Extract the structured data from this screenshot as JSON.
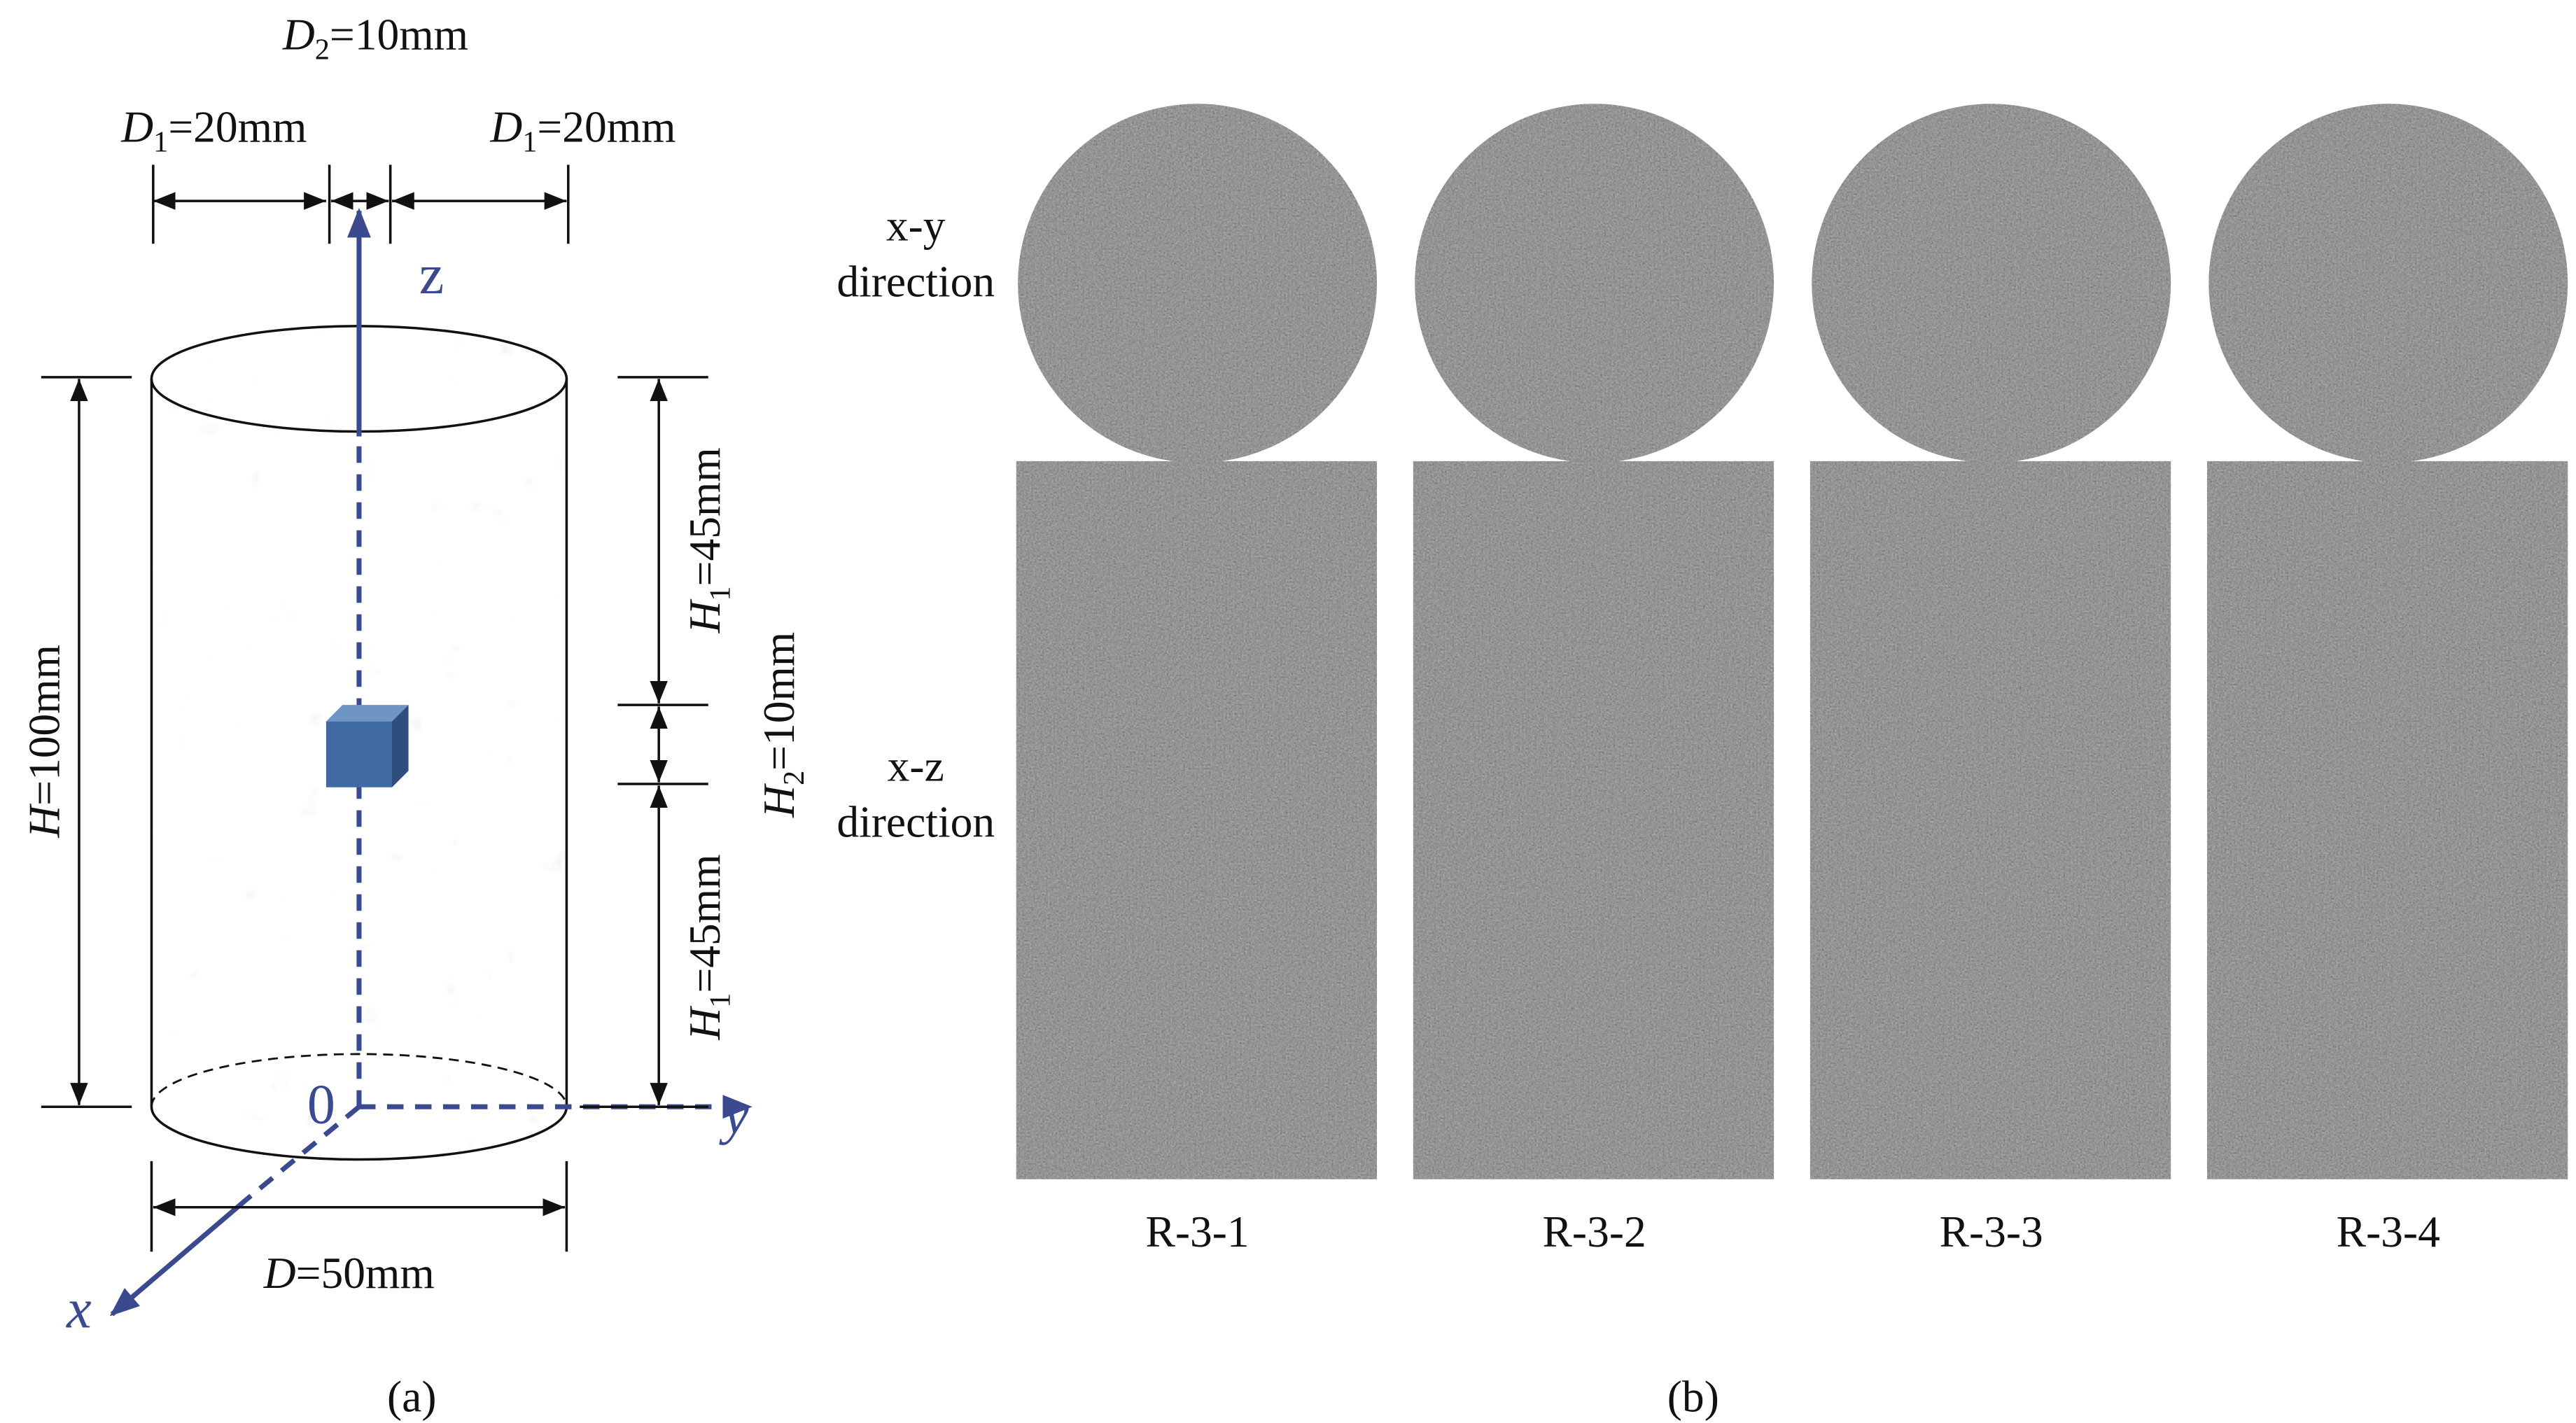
{
  "panel_a": {
    "d2": {
      "symbol": "D",
      "sub": "2",
      "rest": "=10mm"
    },
    "d1_left": {
      "symbol": "D",
      "sub": "1",
      "rest": "=20mm"
    },
    "d1_right": {
      "symbol": "D",
      "sub": "1",
      "rest": "=20mm"
    },
    "h": {
      "symbol": "H",
      "rest": "=100mm"
    },
    "h1_top": {
      "symbol": "H",
      "sub": "1",
      "rest": "=45mm"
    },
    "h2": {
      "symbol": "H",
      "sub": "2",
      "rest": "=10mm"
    },
    "h1_bottom": {
      "symbol": "H",
      "sub": "1",
      "rest": "=45mm"
    },
    "d": {
      "symbol": "D",
      "rest": "=50mm"
    },
    "axis_z": "z",
    "axis_y": "y",
    "axis_x": "x",
    "origin": "0",
    "caption": "(a)"
  },
  "panel_b": {
    "rows": [
      [
        "x-y",
        "direction"
      ],
      [
        "x-z",
        "direction"
      ]
    ],
    "samples": [
      "R-3-1",
      "R-3-2",
      "R-3-3",
      "R-3-4"
    ],
    "caption": "(b)"
  }
}
